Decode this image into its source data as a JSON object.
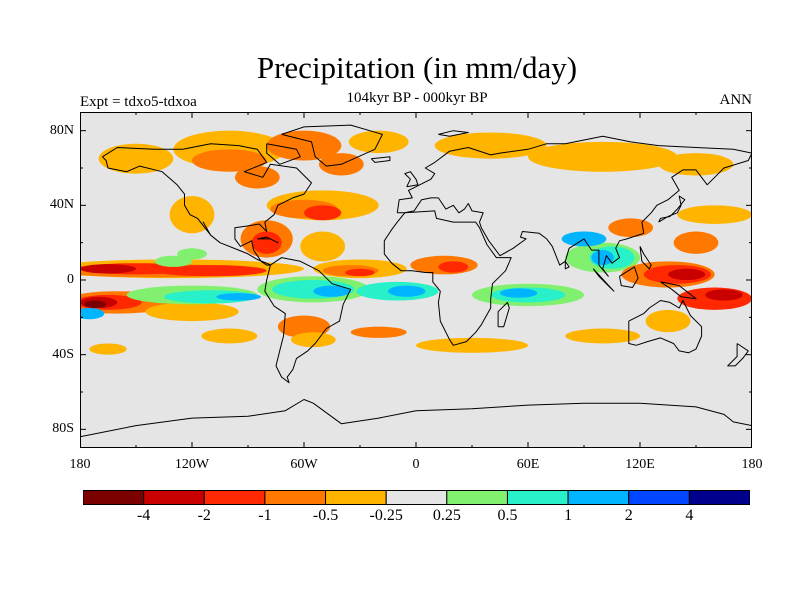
{
  "title": "Precipitation (in mm/day)",
  "subtitle": "104kyr BP - 000kyr BP",
  "left_string": "Expt = tdxo5-tdxoa",
  "right_string": "ANN",
  "map": {
    "projection": "cylindrical-equidistant",
    "lon_range": [
      -180,
      180
    ],
    "lat_range": [
      -90,
      90
    ],
    "background_color": "#e5e5e5",
    "coastline_color": "#000000",
    "lat_labels": [
      "80N",
      "40N",
      "0",
      "40S",
      "80S"
    ],
    "lon_labels": [
      "180",
      "120W",
      "60W",
      "0",
      "60E",
      "120E",
      "180"
    ]
  },
  "colorbar": {
    "colors": [
      "#7b0000",
      "#c80000",
      "#ff2800",
      "#ff7800",
      "#ffb400",
      "#e5e5e5",
      "#80f06e",
      "#28f0c8",
      "#00b4ff",
      "#0046ff",
      "#00008c"
    ],
    "labels": [
      "-4",
      "-2",
      "-1",
      "-0.5",
      "-0.25",
      "0.25",
      "0.5",
      "1",
      "2",
      "4"
    ]
  },
  "chart_data": {
    "type": "heatmap",
    "variable": "Precipitation (in mm/day)",
    "levels": [
      -4,
      -2,
      -1,
      -0.5,
      -0.25,
      0.25,
      0.5,
      1,
      2,
      4
    ],
    "features": [
      {
        "lon": -155,
        "lat": 6,
        "value": -2
      },
      {
        "lon": -160,
        "lat": -12,
        "value": -4
      },
      {
        "lon": -120,
        "lat": -14,
        "value": 1
      },
      {
        "lon": -60,
        "lat": -4,
        "value": 1
      },
      {
        "lon": 60,
        "lat": -8,
        "value": 1
      },
      {
        "lon": 105,
        "lat": 12,
        "value": 2
      },
      {
        "lon": 140,
        "lat": 3,
        "value": -2
      },
      {
        "lon": -65,
        "lat": 38,
        "value": -1
      },
      {
        "lon": -80,
        "lat": 20,
        "value": -2
      },
      {
        "lon": -30,
        "lat": 5,
        "value": -1
      },
      {
        "lon": -100,
        "lat": 62,
        "value": -0.5
      },
      {
        "lon": 160,
        "lat": -10,
        "value": -1
      }
    ]
  }
}
